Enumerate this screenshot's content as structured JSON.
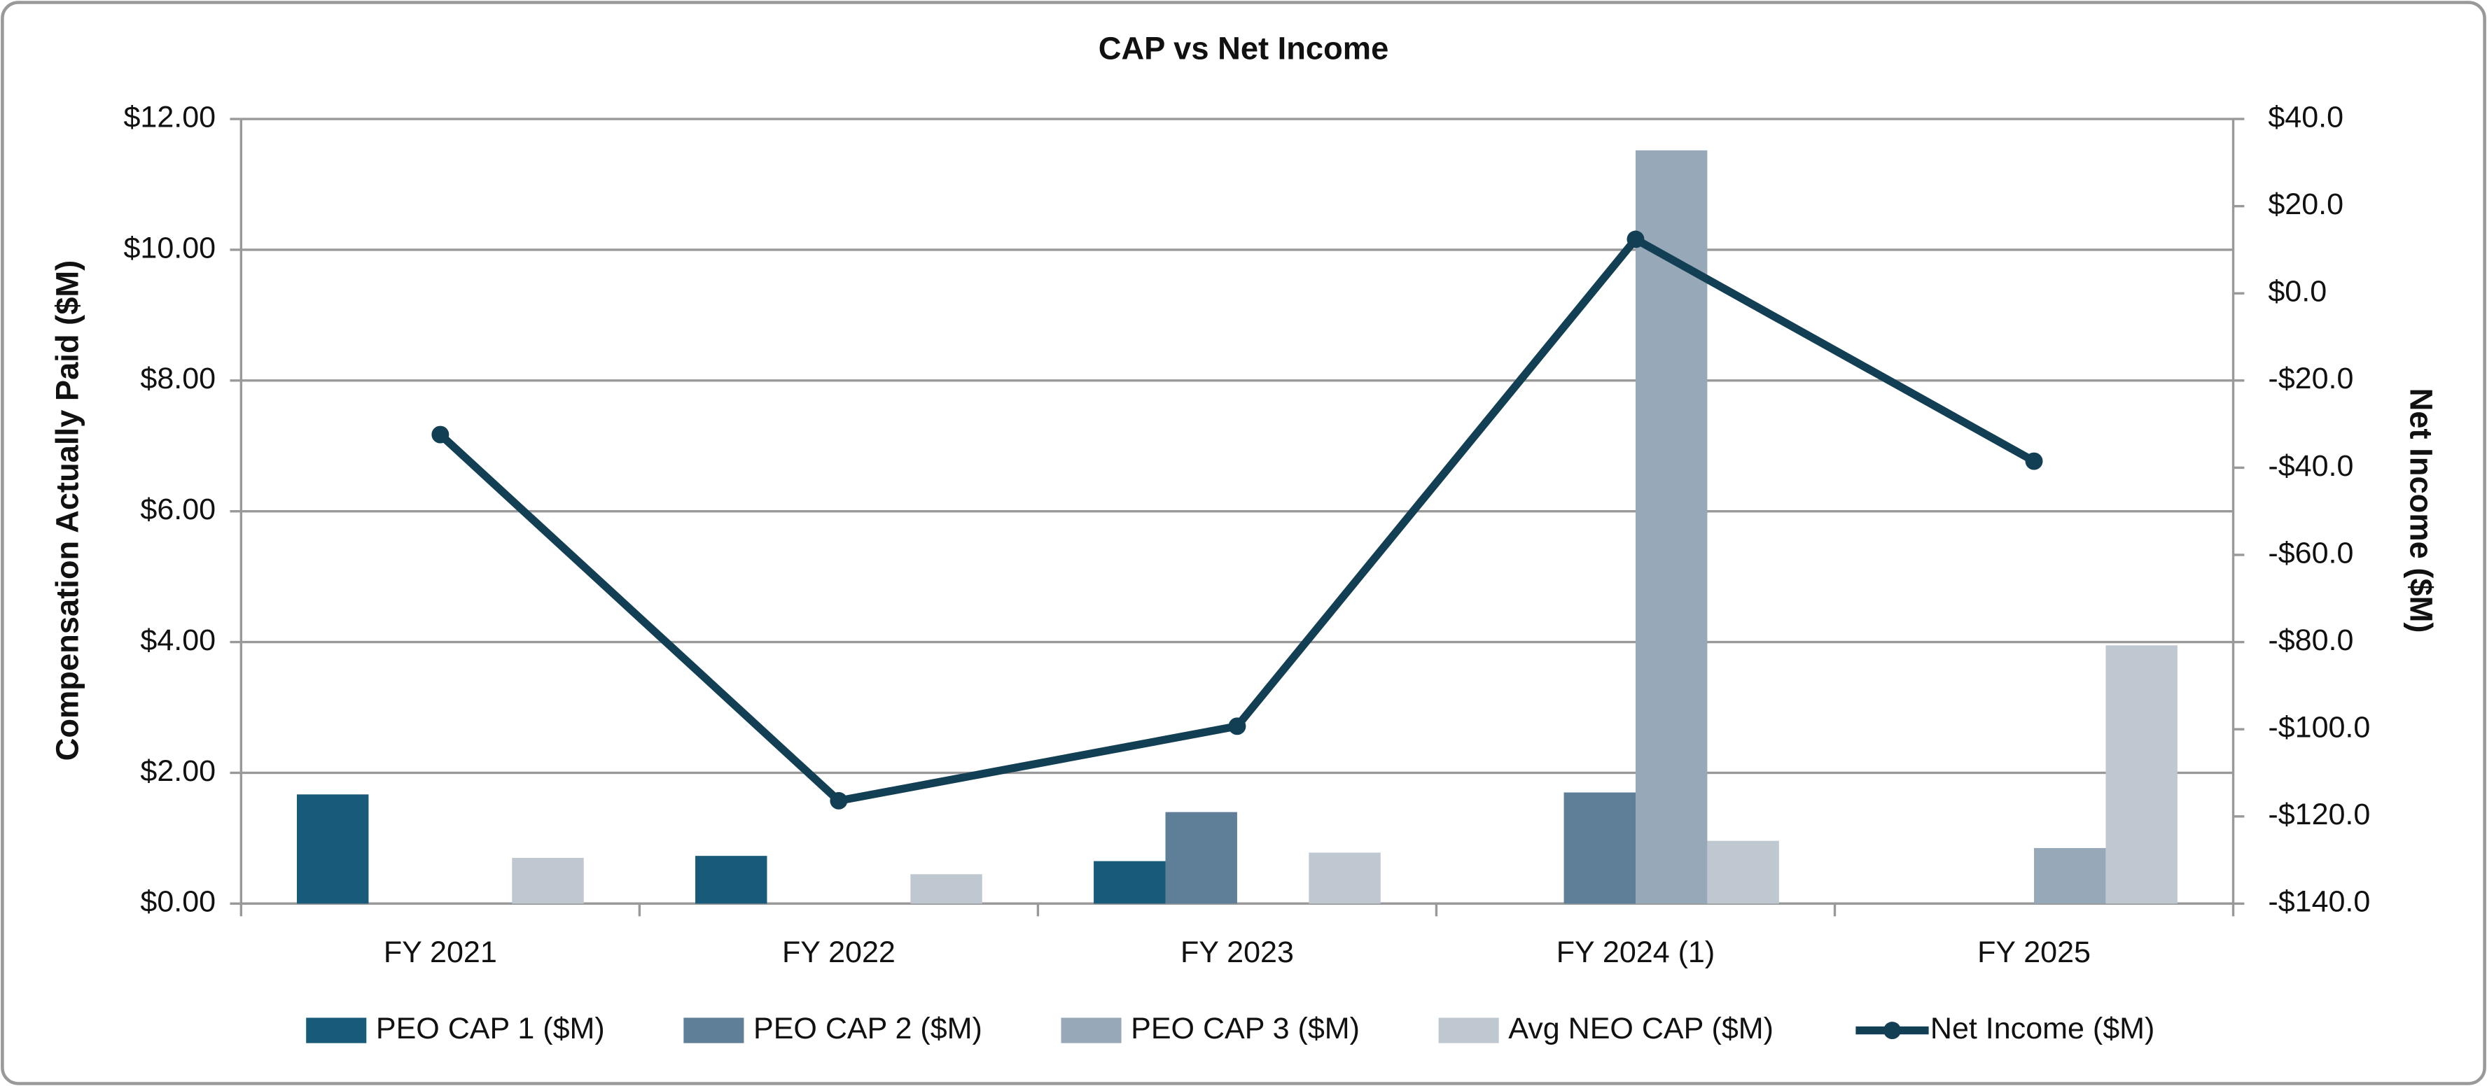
{
  "chart_data": {
    "type": "bar",
    "title": "CAP vs Net Income",
    "y_label": "Compensation Actually Paid ($M)",
    "y2_label": "Net Income ($M)",
    "categories": [
      "FY 2021",
      "FY 2022",
      "FY 2023",
      "FY 2024 (1)",
      "FY 2025"
    ],
    "ylim": [
      0,
      12
    ],
    "yticks": [
      {
        "value": 0,
        "label": "$0.00"
      },
      {
        "value": 2,
        "label": "$2.00"
      },
      {
        "value": 4,
        "label": "$4.00"
      },
      {
        "value": 6,
        "label": "$6.00"
      },
      {
        "value": 8,
        "label": "$8.00"
      },
      {
        "value": 10,
        "label": "$10.00"
      },
      {
        "value": 12,
        "label": "$12.00"
      }
    ],
    "y2lim": [
      -140,
      40
    ],
    "y2ticks": [
      {
        "value": -140,
        "label": "-$140.0"
      },
      {
        "value": -120,
        "label": "-$120.0"
      },
      {
        "value": -100,
        "label": "-$100.0"
      },
      {
        "value": -80,
        "label": "-$80.0"
      },
      {
        "value": -60,
        "label": "-$60.0"
      },
      {
        "value": -40,
        "label": "-$40.0"
      },
      {
        "value": -20,
        "label": "-$20.0"
      },
      {
        "value": 0,
        "label": "$0.0"
      },
      {
        "value": 20,
        "label": "$20.0"
      },
      {
        "value": 40,
        "label": "$40.0"
      }
    ],
    "grid": true,
    "legend": "bottom",
    "series": [
      {
        "name": "PEO CAP 1 ($M)",
        "color": "#175a7a",
        "values": [
          1.67,
          0.73,
          0.65,
          null,
          null
        ]
      },
      {
        "name": "PEO CAP 2 ($M)",
        "color": "#5f7f99",
        "values": [
          null,
          null,
          1.4,
          1.7,
          null
        ]
      },
      {
        "name": "PEO CAP 3 ($M)",
        "color": "#97a9b8",
        "values": [
          null,
          null,
          null,
          11.52,
          0.85
        ]
      },
      {
        "name": "Avg NEO CAP ($M)",
        "color": "#bfc8d1",
        "values": [
          0.7,
          0.45,
          0.78,
          0.96,
          3.95
        ]
      },
      {
        "name": "Net Income ($M)",
        "color": "#133f55",
        "type": "line",
        "axis": "y2",
        "values": [
          -32.4,
          -116.4,
          -99.3,
          12.4,
          -38.5
        ]
      }
    ]
  }
}
